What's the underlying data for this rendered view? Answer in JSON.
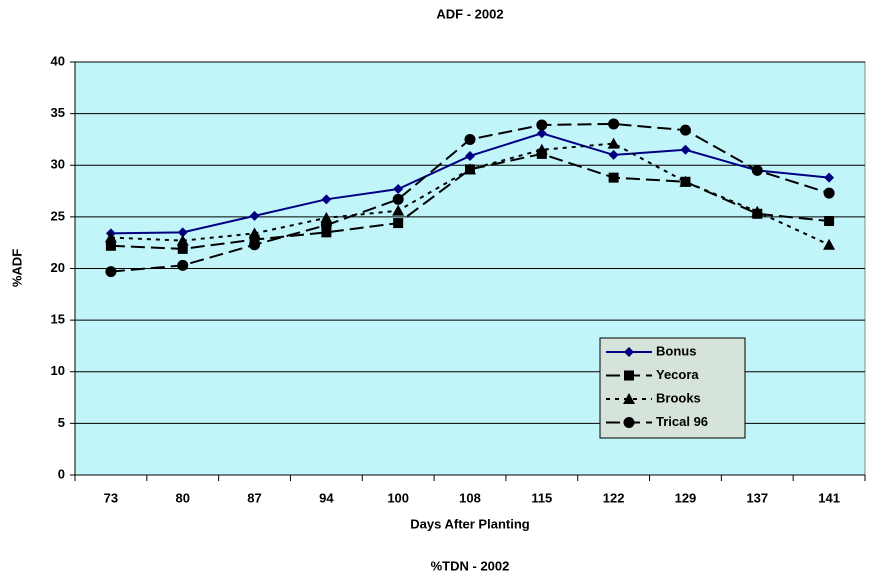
{
  "chart_data": {
    "type": "line",
    "title": "ADF - 2002",
    "x_label": "Days After Planting",
    "y_label": "%ADF",
    "categories": [
      "73",
      "80",
      "87",
      "94",
      "100",
      "108",
      "115",
      "122",
      "129",
      "137",
      "141"
    ],
    "series": [
      {
        "name": "Bonus",
        "color": "#000080",
        "marker": "diamond",
        "dash": "solid",
        "values": [
          23.4,
          23.5,
          25.1,
          26.7,
          27.7,
          30.9,
          33.1,
          31.0,
          31.5,
          29.5,
          28.8
        ]
      },
      {
        "name": "Yecora",
        "color": "#000000",
        "marker": "square",
        "dash": "dashed",
        "values": [
          22.2,
          21.9,
          22.8,
          23.5,
          24.4,
          29.6,
          31.1,
          28.8,
          28.4,
          25.3,
          24.6
        ]
      },
      {
        "name": "Brooks",
        "color": "#000000",
        "marker": "triangle",
        "dash": "dotted",
        "values": [
          23.0,
          22.7,
          23.4,
          24.9,
          25.6,
          29.6,
          31.5,
          32.1,
          28.4,
          25.5,
          22.3
        ]
      },
      {
        "name": "Trical 96",
        "color": "#000000",
        "marker": "circle",
        "dash": "dashed",
        "values": [
          19.7,
          20.3,
          22.3,
          24.2,
          26.7,
          32.5,
          33.9,
          34.0,
          33.4,
          29.5,
          27.3
        ]
      }
    ],
    "ylim": [
      0,
      40
    ],
    "yticks": [
      0,
      5,
      10,
      15,
      20,
      25,
      30,
      35,
      40
    ],
    "grid": true,
    "legend": "lower right",
    "caption": "%TDN - 2002"
  }
}
